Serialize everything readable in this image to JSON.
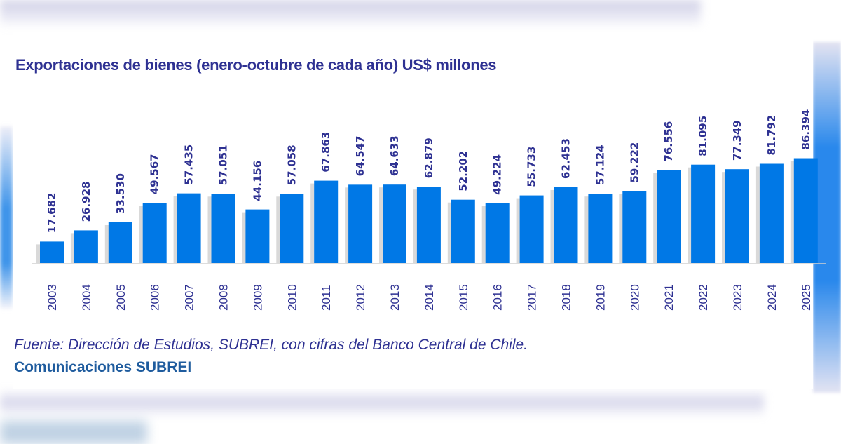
{
  "colors": {
    "bar": "#0078e6",
    "text": "#2e3192",
    "credit": "#1f5c9e"
  },
  "title": "Exportaciones de bienes (enero-octubre de cada año) US$ millones",
  "source": "Fuente: Dirección de Estudios, SUBREI, con cifras del Banco Central de Chile.",
  "credit": "Comunicaciones SUBREI",
  "chart_data": {
    "type": "bar",
    "title": "Exportaciones de bienes (enero-octubre de cada año) US$ millones",
    "xlabel": "",
    "ylabel": "",
    "ylim": [
      0,
      90
    ],
    "grid": false,
    "legend": "none",
    "categories": [
      "2003",
      "2004",
      "2005",
      "2006",
      "2007",
      "2008",
      "2009",
      "2010",
      "2011",
      "2012",
      "2013",
      "2014",
      "2015",
      "2016",
      "2017",
      "2018",
      "2019",
      "2020",
      "2021",
      "2022",
      "2023",
      "2024",
      "2025"
    ],
    "values": [
      17.682,
      26.928,
      33.53,
      49.567,
      57.435,
      57.051,
      44.156,
      57.058,
      67.863,
      64.547,
      64.633,
      62.879,
      52.202,
      49.224,
      55.733,
      62.453,
      57.124,
      59.222,
      76.556,
      81.095,
      77.349,
      81.792,
      86.394
    ],
    "value_labels": [
      "17.682",
      "26.928",
      "33.530",
      "49.567",
      "57.435",
      "57.051",
      "44.156",
      "57.058",
      "67.863",
      "64.547",
      "64.633",
      "62.879",
      "52.202",
      "49.224",
      "55.733",
      "62.453",
      "57.124",
      "59.222",
      "76.556",
      "81.095",
      "77.349",
      "81.792",
      "86.394"
    ]
  }
}
